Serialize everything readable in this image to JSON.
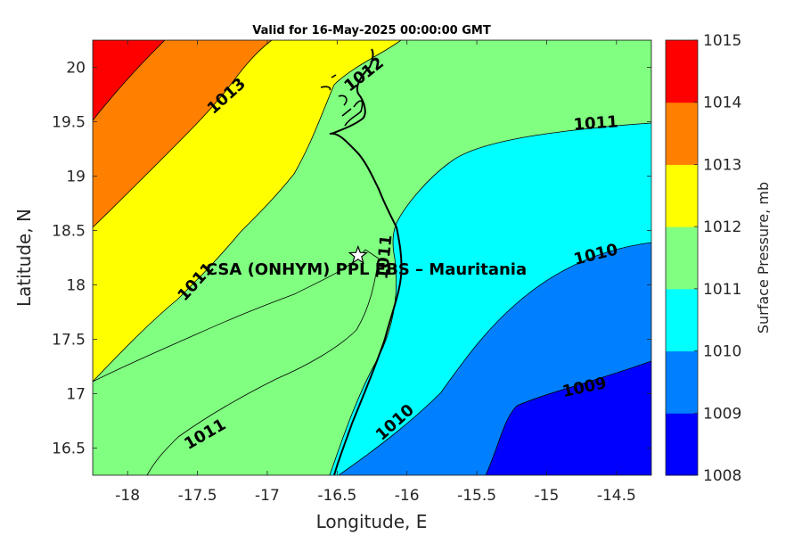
{
  "title": "Valid for 16-May-2025 00:00:00 GMT",
  "x_axis": {
    "label": "Longitude, E",
    "ticks": [
      "-18",
      "-17.5",
      "-17",
      "-16.5",
      "-16",
      "-15.5",
      "-15",
      "-14.5"
    ]
  },
  "y_axis": {
    "label": "Latitude, N",
    "ticks": [
      "16.5",
      "17",
      "17.5",
      "18",
      "18.5",
      "19",
      "19.5",
      "20"
    ]
  },
  "colorbar": {
    "label": "Surface Pressure, mb",
    "ticks": [
      "1008",
      "1009",
      "1010",
      "1011",
      "1012",
      "1013",
      "1014",
      "1015"
    ],
    "colors": [
      "#0000ff",
      "#0080ff",
      "#00ffff",
      "#80ff80",
      "#ffff00",
      "#ff8000",
      "#ff0000",
      "#800000"
    ]
  },
  "site": {
    "label": "CSA (ONHYM) PPL EBS  – Mauritania",
    "longitude": -16.35,
    "latitude": 18.27
  },
  "contour_labels": {
    "c1013": "1013",
    "c1012": "1012",
    "c1011_ne": "1011",
    "c1011_center": "1011",
    "c1011_sw": "1011",
    "c1011_west": "1011",
    "c1010_east": "1010",
    "c1010_south": "1010",
    "c1009": "1009"
  },
  "chart_data": {
    "type": "heatmap",
    "title": "Valid for 16-May-2025 00:00:00 GMT",
    "xlabel": "Longitude, E",
    "ylabel": "Latitude, N",
    "xlim": [
      -18.25,
      -14.25
    ],
    "ylim": [
      16.25,
      20.25
    ],
    "color_scale": {
      "label": "Surface Pressure, mb",
      "min": 1008,
      "max": 1015,
      "step": 1
    },
    "contour_levels": [
      1009,
      1010,
      1011,
      1012,
      1013
    ],
    "marked_site": {
      "name": "CSA (ONHYM) PPL EBS  – Mauritania",
      "lon": -16.35,
      "lat": 18.27
    }
  }
}
